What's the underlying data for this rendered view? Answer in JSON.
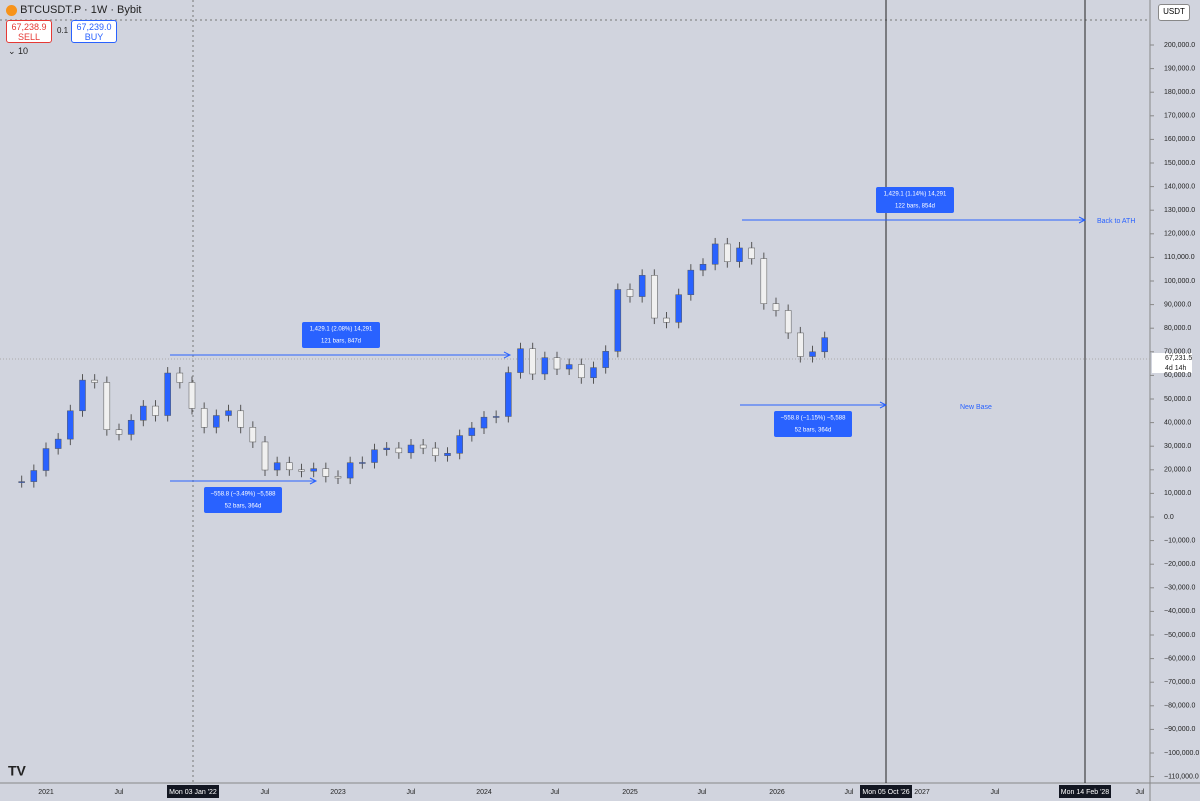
{
  "header": {
    "symbol": "BTCUSDT.P · 1W · Bybit",
    "sell_price": "67,238.9",
    "sell_label": "SELL",
    "quantity": "0.1",
    "buy_price": "67,239.0",
    "buy_label": "BUY",
    "indicator_count": "10"
  },
  "currency_button": "USDT",
  "price_axis": {
    "ticks": [
      {
        "value": 200000,
        "label": "200,000.0"
      },
      {
        "value": 190000,
        "label": "190,000.0"
      },
      {
        "value": 180000,
        "label": "180,000.0"
      },
      {
        "value": 170000,
        "label": "170,000.0"
      },
      {
        "value": 160000,
        "label": "160,000.0"
      },
      {
        "value": 150000,
        "label": "150,000.0"
      },
      {
        "value": 140000,
        "label": "140,000.0"
      },
      {
        "value": 130000,
        "label": "130,000.0"
      },
      {
        "value": 120000,
        "label": "120,000.0"
      },
      {
        "value": 110000,
        "label": "110,000.0"
      },
      {
        "value": 100000,
        "label": "100,000.0"
      },
      {
        "value": 90000,
        "label": "90,000.0"
      },
      {
        "value": 80000,
        "label": "80,000.0"
      },
      {
        "value": 70000,
        "label": "70,000.0"
      },
      {
        "value": 60000,
        "label": "60,000.0"
      },
      {
        "value": 50000,
        "label": "50,000.0"
      },
      {
        "value": 40000,
        "label": "40,000.0"
      },
      {
        "value": 30000,
        "label": "30,000.0"
      },
      {
        "value": 20000,
        "label": "20,000.0"
      },
      {
        "value": 10000,
        "label": "10,000.0"
      },
      {
        "value": 0,
        "label": "0.0"
      },
      {
        "value": -10000,
        "label": "−10,000.0"
      },
      {
        "value": -20000,
        "label": "−20,000.0"
      },
      {
        "value": -30000,
        "label": "−30,000.0"
      },
      {
        "value": -40000,
        "label": "−40,000.0"
      },
      {
        "value": -50000,
        "label": "−50,000.0"
      },
      {
        "value": -60000,
        "label": "−60,000.0"
      },
      {
        "value": -70000,
        "label": "−70,000.0"
      },
      {
        "value": -80000,
        "label": "−80,000.0"
      },
      {
        "value": -90000,
        "label": "−90,000.0"
      },
      {
        "value": -100000,
        "label": "−100,000.0"
      },
      {
        "value": -110000,
        "label": "−110,000.0"
      }
    ],
    "last_price": "67,231.5",
    "countdown": "4d 14h"
  },
  "time_axis": {
    "labels": [
      "2021",
      "Jul",
      "Mon 03 Jan '22",
      "Jul",
      "2023",
      "Jul",
      "2024",
      "Jul",
      "2025",
      "Jul",
      "2026",
      "Jul",
      "Mon 05 Oct '26",
      "2027",
      "Jul",
      "Mon 14 Feb '28",
      "Jul"
    ]
  },
  "annotations": [
    {
      "line1": "1,429.1 (2.08%) 14,291",
      "line2": "121 bars, 847d"
    },
    {
      "line1": "−558.8 (−3.49%) −5,588",
      "line2": "52 bars, 364d"
    },
    {
      "line1": "1,429.1 (1.14%) 14,291",
      "line2": "122 bars, 854d"
    },
    {
      "line1": "−558.8 (−1.15%) −5,588",
      "line2": "52 bars, 364d"
    }
  ],
  "drawing_labels": [
    "Back to ATH",
    "New Base"
  ],
  "price_series": {
    "x": [
      "2020-11",
      "2020-12",
      "2021-01",
      "2021-02",
      "2021-03",
      "2021-04",
      "2021-05",
      "2021-06",
      "2021-07",
      "2021-08",
      "2021-09",
      "2021-10",
      "2021-11",
      "2021-12",
      "2022-01",
      "2022-02",
      "2022-03",
      "2022-04",
      "2022-05",
      "2022-06",
      "2022-07",
      "2022-08",
      "2022-09",
      "2022-10",
      "2022-11",
      "2022-12",
      "2023-01",
      "2023-02",
      "2023-03",
      "2023-04",
      "2023-05",
      "2023-06",
      "2023-07",
      "2023-08",
      "2023-09",
      "2023-10",
      "2023-11",
      "2023-12",
      "2024-01",
      "2024-02",
      "2024-03",
      "2024-04",
      "2024-05",
      "2024-06",
      "2024-07",
      "2024-08",
      "2024-09",
      "2024-10",
      "2024-11",
      "2024-12",
      "2025-01",
      "2025-02",
      "2025-03",
      "2025-04",
      "2025-05",
      "2025-06",
      "2025-07",
      "2025-08",
      "2025-09",
      "2025-10",
      "2025-11",
      "2025-12",
      "2026-01",
      "2026-02",
      "2026-03",
      "2026-04",
      "2026-05"
    ],
    "values": [
      15000,
      19700,
      29000,
      33000,
      45000,
      58000,
      57000,
      37000,
      35000,
      41000,
      47000,
      43000,
      61000,
      57000,
      46000,
      38000,
      43000,
      45000,
      38000,
      31800,
      19900,
      23000,
      20000,
      19400,
      20500,
      17200,
      16500,
      23000,
      23100,
      28500,
      29200,
      27200,
      30500,
      29200,
      26000,
      27000,
      34500,
      37700,
      42300,
      42600,
      61200,
      71300,
      60600,
      67500,
      62700,
      64600,
      59000,
      63300,
      70200,
      96400,
      93400,
      102400,
      84300,
      82500,
      94200,
      104600,
      107100,
      115700,
      108200,
      114000,
      109500,
      90400,
      87500,
      78000,
      68000,
      70000,
      76000
    ]
  }
}
